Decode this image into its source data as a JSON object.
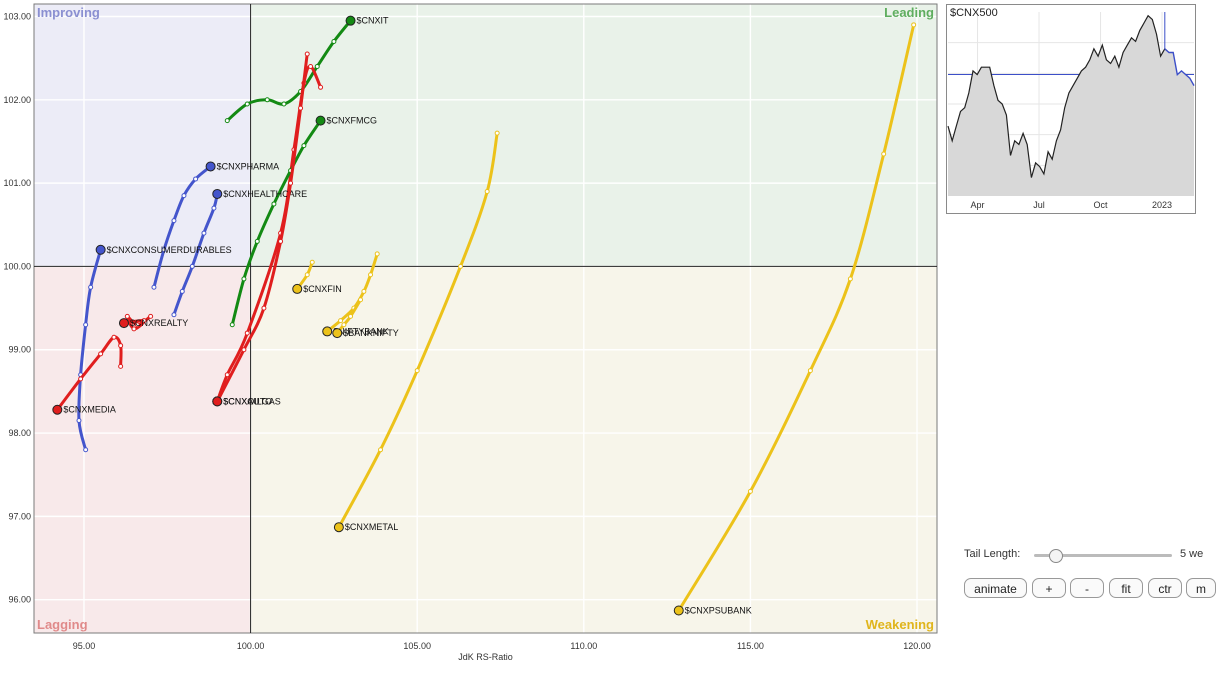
{
  "chart_data": {
    "type": "scatter",
    "subtype": "relative-rotation-graph",
    "xlabel": "JdK RS-Ratio",
    "ylabel": "",
    "xlim": [
      93.5,
      120.6
    ],
    "ylim": [
      95.6,
      103.15
    ],
    "center": [
      100,
      100
    ],
    "x_ticks": [
      "95.00",
      "100.00",
      "105.00",
      "110.00",
      "115.00",
      "120.00"
    ],
    "x_tick_values": [
      95,
      100,
      105,
      110,
      115,
      120
    ],
    "y_ticks": [
      "96.00",
      "97.00",
      "98.00",
      "99.00",
      "100.00",
      "101.00",
      "102.00",
      "103.00"
    ],
    "y_tick_values": [
      96,
      97,
      98,
      99,
      100,
      101,
      102,
      103
    ],
    "grid": true,
    "quadrants": {
      "improving": "Improving",
      "leading": "Leading",
      "lagging": "Lagging",
      "weakening": "Weakening"
    },
    "colors": {
      "improving_bg": "#ececf7",
      "leading_bg": "#e9f2e9",
      "lagging_bg": "#f8e9ea",
      "weakening_bg": "#f7f5ea",
      "improving_text": "#8a8fd1",
      "leading_text": "#5fae5f",
      "lagging_text": "#e08a8a",
      "weakening_text": "#e0b51c",
      "green": "#138a13",
      "red": "#e01e1e",
      "blue": "#4455cc",
      "yellow": "#ecc21a"
    },
    "series": [
      {
        "name": "$CNXIT",
        "color": "green",
        "points": [
          [
            99.3,
            101.75
          ],
          [
            99.9,
            101.95
          ],
          [
            100.5,
            102.0
          ],
          [
            101.0,
            101.95
          ],
          [
            101.5,
            102.1
          ],
          [
            102.0,
            102.4
          ],
          [
            102.5,
            102.7
          ],
          [
            103.0,
            102.95
          ]
        ]
      },
      {
        "name": "$CNXAUTO",
        "color": "red",
        "points": [
          [
            102.1,
            102.15
          ],
          [
            101.8,
            102.4
          ],
          [
            101.6,
            102.2
          ],
          [
            101.3,
            101.4
          ],
          [
            100.9,
            100.4
          ],
          [
            99.9,
            99.2
          ],
          [
            99.3,
            98.7
          ],
          [
            99.0,
            98.38
          ]
        ]
      },
      {
        "name": "$CNXFMCG",
        "color": "green",
        "points": [
          [
            99.45,
            99.3
          ],
          [
            99.8,
            99.85
          ],
          [
            100.2,
            100.3
          ],
          [
            100.7,
            100.75
          ],
          [
            101.2,
            101.15
          ],
          [
            101.6,
            101.45
          ],
          [
            102.1,
            101.75
          ]
        ]
      },
      {
        "name": "$CNXPHARMA",
        "color": "blue",
        "points": [
          [
            97.1,
            99.75
          ],
          [
            97.4,
            100.2
          ],
          [
            97.7,
            100.55
          ],
          [
            98.0,
            100.85
          ],
          [
            98.35,
            101.05
          ],
          [
            98.8,
            101.2
          ]
        ]
      },
      {
        "name": "$CNXHEALTHCARE",
        "color": "blue",
        "points": [
          [
            97.7,
            99.42
          ],
          [
            97.95,
            99.7
          ],
          [
            98.25,
            100.0
          ],
          [
            98.6,
            100.4
          ],
          [
            98.9,
            100.7
          ],
          [
            99.0,
            100.87
          ]
        ]
      },
      {
        "name": "$CNXCONSUMERDURABLES",
        "color": "blue",
        "points": [
          [
            95.05,
            97.8
          ],
          [
            94.85,
            98.15
          ],
          [
            94.9,
            98.7
          ],
          [
            95.05,
            99.3
          ],
          [
            95.2,
            99.75
          ],
          [
            95.5,
            100.2
          ]
        ]
      },
      {
        "name": "$CNXREALTY",
        "color": "red",
        "points": [
          [
            97.0,
            99.4
          ],
          [
            96.6,
            99.3
          ],
          [
            96.3,
            99.4
          ],
          [
            96.5,
            99.25
          ],
          [
            96.8,
            99.35
          ],
          [
            96.2,
            99.32
          ]
        ]
      },
      {
        "name": "$CNXMEDIA",
        "color": "red",
        "points": [
          [
            96.1,
            98.8
          ],
          [
            96.1,
            99.05
          ],
          [
            95.9,
            99.15
          ],
          [
            95.5,
            98.95
          ],
          [
            94.9,
            98.65
          ],
          [
            94.2,
            98.28
          ]
        ]
      },
      {
        "name": "$CNXOILGAS",
        "color": "red",
        "points": [
          [
            101.7,
            102.55
          ],
          [
            101.5,
            101.9
          ],
          [
            101.2,
            101.0
          ],
          [
            100.9,
            100.3
          ],
          [
            100.4,
            99.5
          ],
          [
            99.8,
            99.0
          ],
          [
            99.0,
            98.38
          ]
        ]
      },
      {
        "name": "$CNXFIN",
        "color": "yellow",
        "points": [
          [
            101.85,
            100.05
          ],
          [
            101.7,
            99.9
          ],
          [
            101.4,
            99.73
          ]
        ]
      },
      {
        "name": "$NIFTYBANK",
        "color": "yellow",
        "points": [
          [
            103.8,
            100.15
          ],
          [
            103.6,
            99.9
          ],
          [
            103.4,
            99.7
          ],
          [
            103.1,
            99.5
          ],
          [
            102.7,
            99.35
          ],
          [
            102.3,
            99.22
          ]
        ]
      },
      {
        "name": "$BANKNIFTY",
        "color": "yellow",
        "points": [
          [
            103.3,
            99.6
          ],
          [
            103.0,
            99.4
          ],
          [
            102.8,
            99.3
          ],
          [
            102.6,
            99.2
          ]
        ]
      },
      {
        "name": "$CNXMETAL",
        "color": "yellow",
        "points": [
          [
            107.4,
            101.6
          ],
          [
            107.1,
            100.9
          ],
          [
            106.3,
            100.0
          ],
          [
            105.0,
            98.75
          ],
          [
            103.9,
            97.8
          ],
          [
            102.65,
            96.87
          ]
        ]
      },
      {
        "name": "$CNXPSUBANK",
        "color": "yellow",
        "points": [
          [
            119.9,
            102.9
          ],
          [
            119.0,
            101.35
          ],
          [
            118.0,
            99.85
          ],
          [
            116.8,
            98.75
          ],
          [
            115.0,
            97.3
          ],
          [
            112.85,
            95.87
          ]
        ]
      }
    ],
    "labels": {
      "$CNXIT": "$CNXIT",
      "$CNXAUTO": "$CNXAUTO",
      "$CNXFMCG": "$CNXFMCG",
      "$CNXPHARMA": "$CNXPHARMA",
      "$CNXHEALTHCARE": "$CNXHEALTHCARE",
      "$CNXCONSUMERDURABLES": "$CNXCONSUMERDURABLES",
      "$CNXREALTY": "$CNXREALTY",
      "$CNXMEDIA": "$CNXMEDIA",
      "$CNXOILGAS": "$CNXOILGAS",
      "$CNXFIN": "$CNXFIN",
      "$NIFTYBANK": "$NIFTYBANK",
      "$BANKNIFTY": "$BANKNIFTY",
      "$CNXMETAL": "$CNXMETAL",
      "$CNXPSUBANK": "$CNXPSUBANK"
    }
  },
  "mini_chart": {
    "title": "$CNX500",
    "x_labels": [
      "Apr",
      "Jul",
      "Oct",
      "2023"
    ],
    "values": [
      0.38,
      0.3,
      0.38,
      0.46,
      0.48,
      0.56,
      0.68,
      0.66,
      0.7,
      0.7,
      0.7,
      0.6,
      0.52,
      0.5,
      0.44,
      0.22,
      0.3,
      0.28,
      0.34,
      0.28,
      0.1,
      0.18,
      0.16,
      0.12,
      0.24,
      0.2,
      0.3,
      0.36,
      0.48,
      0.56,
      0.6,
      0.64,
      0.68,
      0.7,
      0.74,
      0.8,
      0.76,
      0.82,
      0.74,
      0.72,
      0.76,
      0.7,
      0.78,
      0.82,
      0.86,
      0.84,
      0.9,
      0.94,
      0.98,
      0.96,
      0.88,
      0.76,
      0.8,
      0.78,
      0.78,
      0.66,
      0.68,
      0.66,
      0.64,
      0.6
    ],
    "highlight_from": 52,
    "colors": {
      "line": "#222222",
      "fill": "#d8d8d8",
      "highlight": "#3c4fc8"
    }
  },
  "controls": {
    "tail_length_label": "Tail Length:",
    "tail_length_value": "5 we",
    "tail_length_fraction": 0.15,
    "buttons": {
      "animate": "animate",
      "plus": "+",
      "minus": "-",
      "fit": "fit",
      "ctr": "ctr",
      "more": "m"
    }
  }
}
